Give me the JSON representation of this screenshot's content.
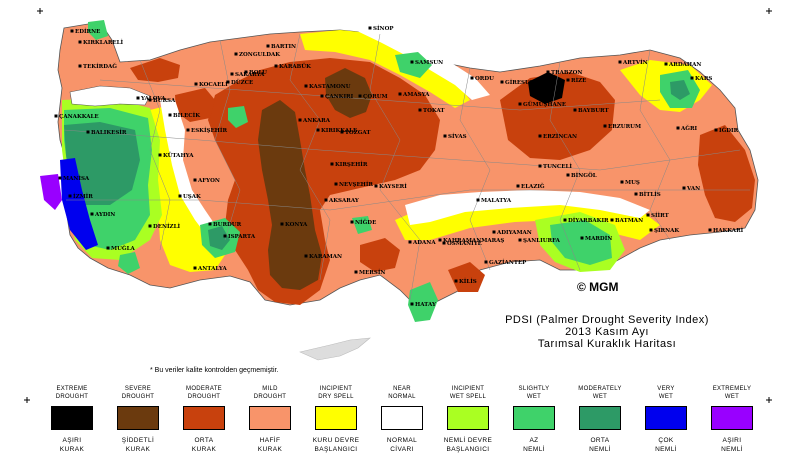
{
  "title": {
    "line1": "PDSI (Palmer Drought Severity Index)",
    "line2": "2013 Kasım Ayı",
    "line3": "Tarımsal Kuraklık Haritası"
  },
  "copyright": "© MGM",
  "note": "* Bu veriler kalite kontrolden geçmemiştir.",
  "colors": {
    "extreme_drought": "#000000",
    "severe_drought": "#6b3a0e",
    "moderate_drought": "#c8410d",
    "mild_drought": "#f8946a",
    "incipient_dry": "#ffff00",
    "near_normal": "#ffffff",
    "incipient_wet": "#aaff22",
    "slightly_wet": "#3fd26a",
    "moderately_wet": "#2d9a66",
    "very_wet": "#0000ee",
    "extremely_wet": "#9900ff",
    "sea": "#ffffff",
    "border": "#888888"
  },
  "legend": [
    {
      "en1": "EXTREME",
      "en2": "DROUGHT",
      "tr1": "AŞIRI",
      "tr2": "KURAK",
      "color": "#000000"
    },
    {
      "en1": "SEVERE",
      "en2": "DROUGHT",
      "tr1": "ŞİDDETLİ",
      "tr2": "KURAK",
      "color": "#6b3a0e"
    },
    {
      "en1": "MODERATE",
      "en2": "DROUGHT",
      "tr1": "ORTA",
      "tr2": "KURAK",
      "color": "#c8410d"
    },
    {
      "en1": "MILD",
      "en2": "DROUGHT",
      "tr1": "HAFİF",
      "tr2": "KURAK",
      "color": "#f8946a"
    },
    {
      "en1": "INCIPIENT",
      "en2": "DRY SPELL",
      "tr1": "KURU DEVRE",
      "tr2": "BAŞLANGICI",
      "color": "#ffff00"
    },
    {
      "en1": "NEAR",
      "en2": "NORMAL",
      "tr1": "NORMAL",
      "tr2": "CİVARI",
      "color": "#ffffff"
    },
    {
      "en1": "INCIPIENT",
      "en2": "WET SPELL",
      "tr1": "NEMLİ DEVRE",
      "tr2": "BAŞLANGICI",
      "color": "#aaff22"
    },
    {
      "en1": "SLIGHTLY",
      "en2": "WET",
      "tr1": "AZ",
      "tr2": "NEMLİ",
      "color": "#3fd26a"
    },
    {
      "en1": "MODERATELY",
      "en2": "WET",
      "tr1": "ORTA",
      "tr2": "NEMLİ",
      "color": "#2d9a66"
    },
    {
      "en1": "VERY",
      "en2": "WET",
      "tr1": "ÇOK",
      "tr2": "NEMLİ",
      "color": "#0000ee"
    },
    {
      "en1": "EXTREMELY",
      "en2": "WET",
      "tr1": "AŞIRI",
      "tr2": "NEMLİ",
      "color": "#9900ff"
    }
  ],
  "cities": [
    "EDİRNE",
    "KIRKLARELİ",
    "TEKİRDAĞ",
    "ÇANAKKALE",
    "BALIKESİR",
    "MANİSA",
    "İZMİR",
    "AYDIN",
    "MUĞLA",
    "DENİZLİ",
    "BURDUR",
    "ISPARTA",
    "ANTALYA",
    "KÜTAHYA",
    "BURSA",
    "YALOVA",
    "KOCAELİ",
    "SAKARYA",
    "BİLECİK",
    "ESKİŞEHİR",
    "AFYON",
    "UŞAK",
    "DÜZCE",
    "BOLU",
    "ZONGULDAK",
    "BARTIN",
    "KARABÜK",
    "KASTAMONU",
    "SİNOP",
    "ÇANKIRI",
    "ÇORUM",
    "SAMSUN",
    "AMASYA",
    "TOKAT",
    "ORDU",
    "GİRESUN",
    "TRABZON",
    "RİZE",
    "ARTVİN",
    "ARDAHAN",
    "KARS",
    "IĞDIR",
    "ERZURUM",
    "BAYBURT",
    "GÜMÜŞHANE",
    "ERZİNCAN",
    "TUNCELİ",
    "BİNGÖL",
    "MUŞ",
    "AĞRI",
    "VAN",
    "BİTLİS",
    "SİİRT",
    "BATMAN",
    "ŞIRNAK",
    "HAKKARİ",
    "MARDİN",
    "DİYARBAKIR",
    "ŞANLIURFA",
    "ADIYAMAN",
    "MALATYA",
    "ELAZIĞ",
    "SİVAS",
    "YOZGAT",
    "KIRŞEHİR",
    "KIRIKKALE",
    "ANKARA",
    "NEVŞEHİR",
    "KAYSERİ",
    "AKSARAY",
    "NİĞDE",
    "KONYA",
    "KARAMAN",
    "MERSİN",
    "ADANA",
    "OSMANİYE",
    "HATAY",
    "KAHRAMANMARAŞ",
    "GAZİANTEP",
    "KİLİS"
  ]
}
